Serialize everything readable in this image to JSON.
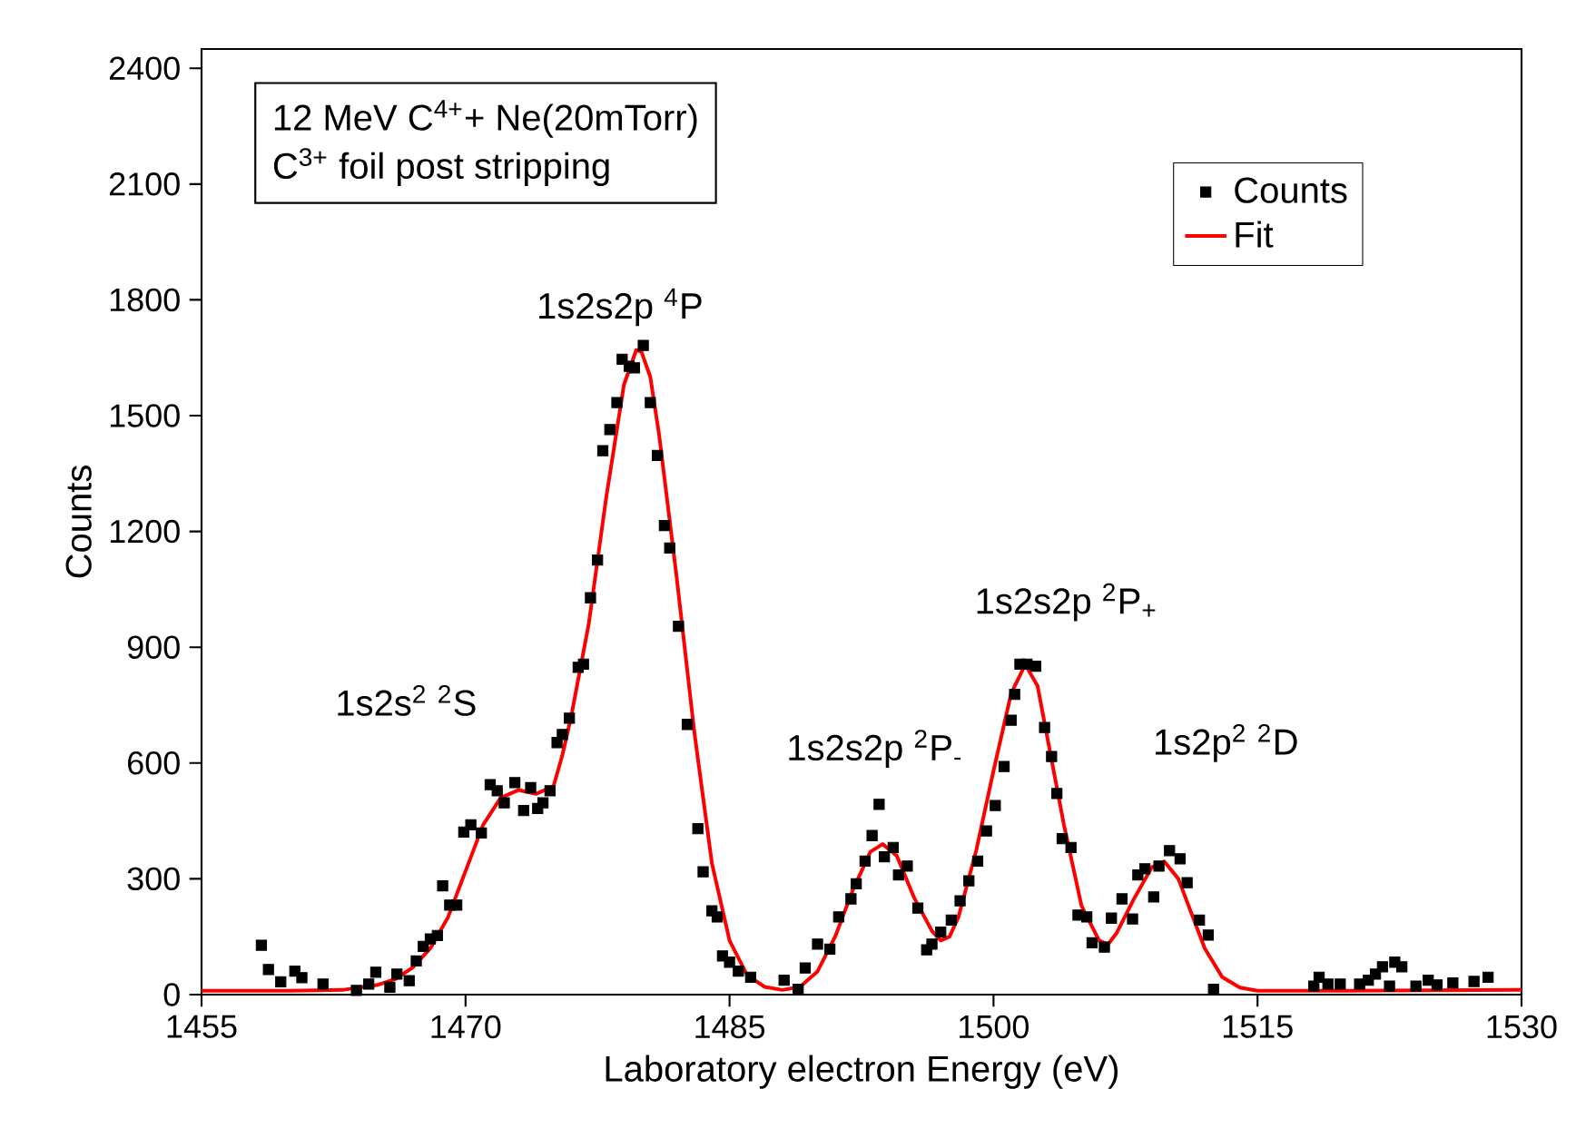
{
  "chart_data": {
    "type": "scatter",
    "xlabel": "Laboratory electron Energy (eV)",
    "ylabel": "Counts",
    "xlim": [
      1455,
      1530
    ],
    "ylim": [
      0,
      2450
    ],
    "xticks": [
      1455,
      1470,
      1485,
      1500,
      1515,
      1530
    ],
    "yticks": [
      0,
      300,
      600,
      900,
      1200,
      1500,
      1800,
      2100,
      2400
    ],
    "legend": "top right",
    "annotations": [
      "12 MeV C$^{4+}$+ Ne(20mTorr)",
      "C$^{3+}$ foil post stripping",
      "1s2s$^{2}$ $^{2}$S",
      "1s2s2p $^{4}$P",
      "1s2s2p $^{2}$P$_{-}$",
      "1s2s2p $^{2}$P$_{+}$",
      "1s2p$^{2}$ $^{2}$D"
    ],
    "series": [
      {
        "name": "Counts",
        "marker": "square",
        "color": "#000000",
        "x": [
          1458.4,
          1458.8,
          1459.5,
          1460.3,
          1460.7,
          1461.9,
          1463.8,
          1464.5,
          1464.9,
          1465.7,
          1466.1,
          1466.8,
          1467.2,
          1467.6,
          1468.0,
          1468.4,
          1468.7,
          1469.1,
          1469.5,
          1469.9,
          1470.3,
          1470.9,
          1471.4,
          1471.8,
          1472.2,
          1472.8,
          1473.3,
          1473.7,
          1474.1,
          1474.4,
          1474.8,
          1475.2,
          1475.5,
          1475.9,
          1476.4,
          1476.7,
          1477.1,
          1477.5,
          1477.8,
          1478.2,
          1478.6,
          1478.9,
          1479.3,
          1479.6,
          1480.1,
          1480.5,
          1480.9,
          1481.3,
          1481.6,
          1482.1,
          1482.6,
          1483.2,
          1483.5,
          1484.0,
          1484.3,
          1484.6,
          1485.0,
          1485.5,
          1486.2,
          1488.1,
          1488.9,
          1489.3,
          1490.0,
          1490.7,
          1491.2,
          1491.9,
          1492.2,
          1492.7,
          1493.1,
          1493.5,
          1493.8,
          1494.3,
          1494.6,
          1495.1,
          1495.7,
          1496.2,
          1496.5,
          1497.0,
          1497.6,
          1498.1,
          1498.6,
          1499.1,
          1499.6,
          1500.1,
          1500.6,
          1501.0,
          1501.2,
          1501.5,
          1501.9,
          1502.4,
          1502.9,
          1503.3,
          1503.6,
          1503.9,
          1504.4,
          1504.8,
          1505.3,
          1505.6,
          1506.3,
          1506.7,
          1507.3,
          1507.9,
          1508.2,
          1508.6,
          1509.1,
          1509.4,
          1510.0,
          1510.6,
          1511.0,
          1511.7,
          1512.2,
          1512.5,
          1518.2,
          1518.5,
          1519.0,
          1519.7,
          1520.8,
          1521.3,
          1521.7,
          1522.1,
          1522.5,
          1522.8,
          1523.2,
          1524.0,
          1524.7,
          1525.2,
          1526.1,
          1527.3,
          1528.1
        ],
        "values": [
          128,
          65,
          33,
          61,
          44,
          27,
          11,
          27,
          58,
          19,
          53,
          36,
          87,
          125,
          144,
          153,
          282,
          232,
          232,
          421,
          440,
          419,
          544,
          528,
          497,
          549,
          477,
          536,
          482,
          497,
          528,
          653,
          674,
          716,
          848,
          856,
          1028,
          1126,
          1409,
          1464,
          1534,
          1646,
          1628,
          1624,
          1682,
          1534,
          1397,
          1215,
          1157,
          954,
          700,
          430,
          318,
          217,
          201,
          100,
          84,
          61,
          45,
          37,
          14,
          69,
          131,
          118,
          201,
          248,
          287,
          346,
          412,
          493,
          357,
          381,
          310,
          333,
          224,
          116,
          131,
          162,
          193,
          243,
          295,
          346,
          424,
          490,
          591,
          711,
          778,
          856,
          856,
          851,
          692,
          617,
          521,
          404,
          381,
          206,
          201,
          134,
          123,
          198,
          248,
          196,
          310,
          326,
          253,
          333,
          373,
          352,
          290,
          193,
          154,
          14,
          22,
          45,
          27,
          27,
          27,
          37,
          53,
          72,
          22,
          84,
          72,
          22,
          37,
          25,
          30,
          34,
          45
        ]
      },
      {
        "name": "Fit",
        "type": "line",
        "marker": "none",
        "color": "#ff0000",
        "x": [
          1455,
          1460,
          1463,
          1465,
          1466,
          1467,
          1468,
          1469,
          1470,
          1471,
          1472,
          1473,
          1474,
          1475,
          1475.5,
          1476,
          1477,
          1478,
          1479,
          1479.7,
          1480,
          1480.5,
          1481,
          1482,
          1483,
          1484,
          1485,
          1486,
          1487,
          1488,
          1489,
          1490,
          1491,
          1492,
          1493,
          1493.7,
          1494.5,
          1495.5,
          1496.5,
          1497,
          1497.5,
          1498,
          1499,
          1500,
          1501,
          1501.8,
          1502.5,
          1503,
          1504,
          1505,
          1506,
          1506.5,
          1507,
          1508,
          1509,
          1509.7,
          1510.5,
          1511,
          1512,
          1513,
          1514,
          1515,
          1520,
          1530
        ],
        "values": [
          10,
          10,
          12,
          25,
          40,
          70,
          120,
          200,
          320,
          440,
          510,
          530,
          520,
          540,
          620,
          720,
          960,
          1290,
          1580,
          1670,
          1665,
          1600,
          1450,
          1080,
          680,
          340,
          140,
          50,
          20,
          12,
          20,
          60,
          150,
          270,
          370,
          390,
          360,
          250,
          165,
          140,
          150,
          200,
          370,
          580,
          780,
          855,
          800,
          680,
          440,
          230,
          140,
          130,
          160,
          250,
          330,
          345,
          300,
          240,
          120,
          45,
          18,
          10,
          10,
          12
        ]
      }
    ]
  }
}
